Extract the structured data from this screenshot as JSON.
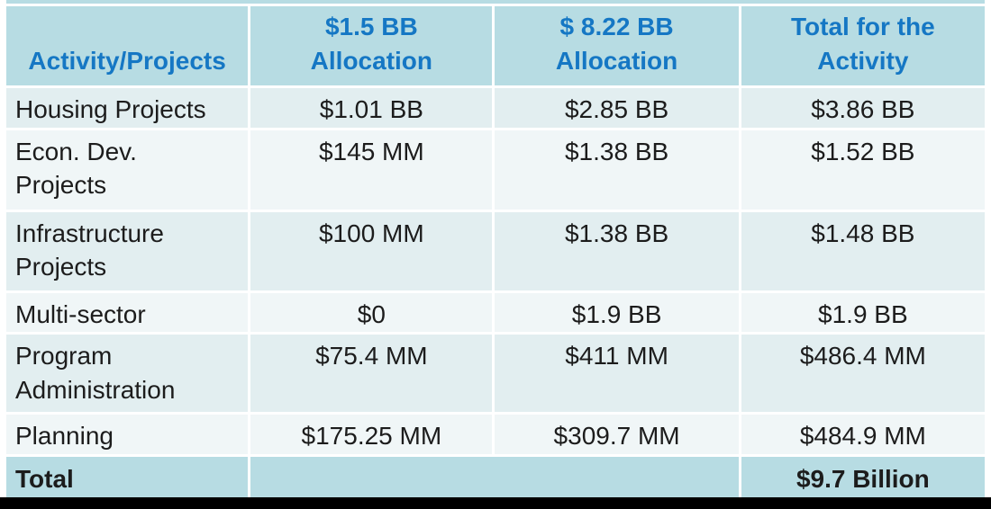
{
  "colors": {
    "header_bg": "#b7dce3",
    "header_text": "#1577c4",
    "row_band_dark": "#e2eef0",
    "row_band_light": "#f0f6f7",
    "total_row_bg": "#b7dce3",
    "body_text": "#1c1c1c",
    "bottom_bar": "#000000"
  },
  "chart_data": {
    "type": "table",
    "columns": [
      "Activity/Projects",
      "$1.5 BB Allocation",
      "$ 8.22 BB Allocation",
      "Total for the Activity"
    ],
    "rows": [
      [
        "Housing Projects",
        "$1.01 BB",
        "$2.85 BB",
        "$3.86 BB"
      ],
      [
        "Econ. Dev. Projects",
        "$145 MM",
        "$1.38 BB",
        "$1.52 BB"
      ],
      [
        "Infrastructure Projects",
        "$100 MM",
        "$1.38 BB",
        "$1.48 BB"
      ],
      [
        "Multi-sector",
        "$0",
        "$1.9 BB",
        "$1.9 BB"
      ],
      [
        "Program Administration",
        "$75.4 MM",
        "$411 MM",
        "$486.4 MM"
      ],
      [
        "Planning",
        "$175.25 MM",
        "$309.7 MM",
        "$484.9 MM"
      ]
    ],
    "footer": [
      "Total",
      "",
      "$9.7 Billion"
    ]
  },
  "table": {
    "headers": {
      "activity": "Activity/Projects",
      "alloc15": "$1.5 BB\nAllocation",
      "alloc822": "$ 8.22 BB\nAllocation",
      "total": "Total for the\nActivity"
    },
    "rows": [
      {
        "activity": "Housing Projects",
        "alloc15": "$1.01 BB",
        "alloc822": "$2.85 BB",
        "total": "$3.86 BB"
      },
      {
        "activity": "Econ. Dev.\nProjects",
        "alloc15": "$145 MM",
        "alloc822": "$1.38 BB",
        "total": "$1.52 BB"
      },
      {
        "activity": "Infrastructure\nProjects",
        "alloc15": "$100 MM",
        "alloc822": "$1.38 BB",
        "total": "$1.48 BB"
      },
      {
        "activity": "Multi-sector",
        "alloc15": "$0",
        "alloc822": "$1.9 BB",
        "total": "$1.9 BB"
      },
      {
        "activity": "Program\nAdministration",
        "alloc15": "$75.4 MM",
        "alloc822": "$411 MM",
        "total": "$486.4 MM"
      },
      {
        "activity": "Planning",
        "alloc15": "$175.25 MM",
        "alloc822": "$309.7 MM",
        "total": "$484.9 MM"
      }
    ],
    "total_row": {
      "label": "Total",
      "merged": "",
      "grand_total": "$9.7 Billion"
    }
  }
}
